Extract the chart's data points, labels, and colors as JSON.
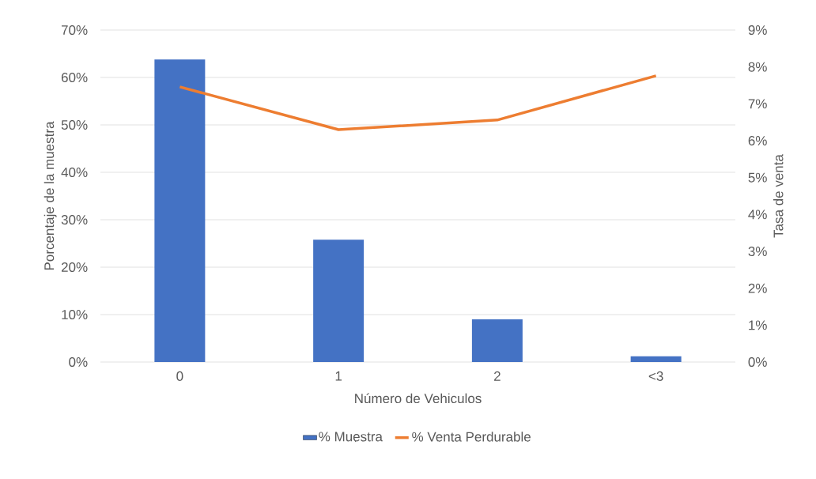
{
  "chart_data": {
    "type": "bar",
    "categories": [
      "0",
      "1",
      "2",
      "<3"
    ],
    "xlabel": "Número de Vehiculos",
    "ylabel": "Porcentaje de la muestra",
    "y2label": "Tasa de venta",
    "series": [
      {
        "name": "% Muestra",
        "color": "#4472c4",
        "values": [
          63.8,
          25.8,
          9.0,
          1.2
        ]
      },
      {
        "name": "% Venta Perdurable",
        "type": "line",
        "axis": "y2",
        "color": "#ed7d31",
        "values": [
          7.46,
          6.3,
          6.56,
          7.76
        ]
      }
    ],
    "ylim": [
      0,
      70
    ],
    "yticks": [
      {
        "value": 0,
        "label": "0%"
      },
      {
        "value": 10,
        "label": "10%"
      },
      {
        "value": 20,
        "label": "20%"
      },
      {
        "value": 30,
        "label": "30%"
      },
      {
        "value": 40,
        "label": "40%"
      },
      {
        "value": 50,
        "label": "50%"
      },
      {
        "value": 60,
        "label": "60%"
      },
      {
        "value": 70,
        "label": "70%"
      }
    ],
    "y2lim": [
      0,
      9
    ],
    "y2ticks": [
      {
        "value": 0,
        "label": "0%"
      },
      {
        "value": 1,
        "label": "1%"
      },
      {
        "value": 2,
        "label": "2%"
      },
      {
        "value": 3,
        "label": "3%"
      },
      {
        "value": 4,
        "label": "4%"
      },
      {
        "value": 5,
        "label": "5%"
      },
      {
        "value": 6,
        "label": "6%"
      },
      {
        "value": 7,
        "label": "7%"
      },
      {
        "value": 8,
        "label": "8%"
      },
      {
        "value": 9,
        "label": "9%"
      }
    ],
    "grid": "y",
    "legend": "bottom"
  }
}
